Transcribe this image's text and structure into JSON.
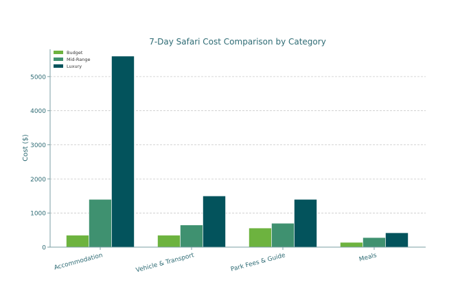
{
  "chart_data": {
    "type": "bar",
    "title": "7-Day Safari Cost Comparison by Category",
    "xlabel": "",
    "ylabel": "Cost ($)",
    "categories": [
      "Accommodation",
      "Vehicle & Transport",
      "Park Fees & Guide",
      "Meals"
    ],
    "series": [
      {
        "name": "Budget",
        "color": "#6db33f",
        "values": [
          350,
          350,
          560,
          140
        ]
      },
      {
        "name": "Mid-Range",
        "color": "#3f9170",
        "values": [
          1400,
          650,
          700,
          280
        ]
      },
      {
        "name": "Luxury",
        "color": "#03535c",
        "values": [
          5600,
          1500,
          1400,
          420
        ]
      }
    ],
    "ylim": [
      0,
      5800
    ],
    "yticks": [
      0,
      1000,
      2000,
      3000,
      4000,
      5000
    ],
    "grid": "horizontal dashed",
    "legend": "top-left",
    "text_color": "#2e6b74"
  }
}
